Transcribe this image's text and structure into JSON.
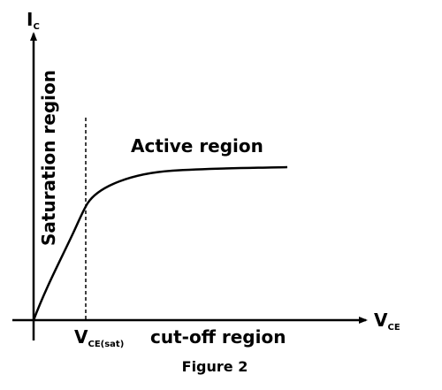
{
  "axes": {
    "y_label": {
      "main": "I",
      "sub": "C"
    },
    "x_label": {
      "main": "V",
      "sub": "CE"
    }
  },
  "markers": {
    "vce_sat": {
      "main": "V",
      "sub": "CE(sat)"
    }
  },
  "regions": {
    "saturation": "Saturation region",
    "active": "Active region",
    "cutoff": "cut-off region"
  },
  "caption": "Figure 2",
  "colors": {
    "ink": "#000000",
    "background": "#ffffff"
  }
}
